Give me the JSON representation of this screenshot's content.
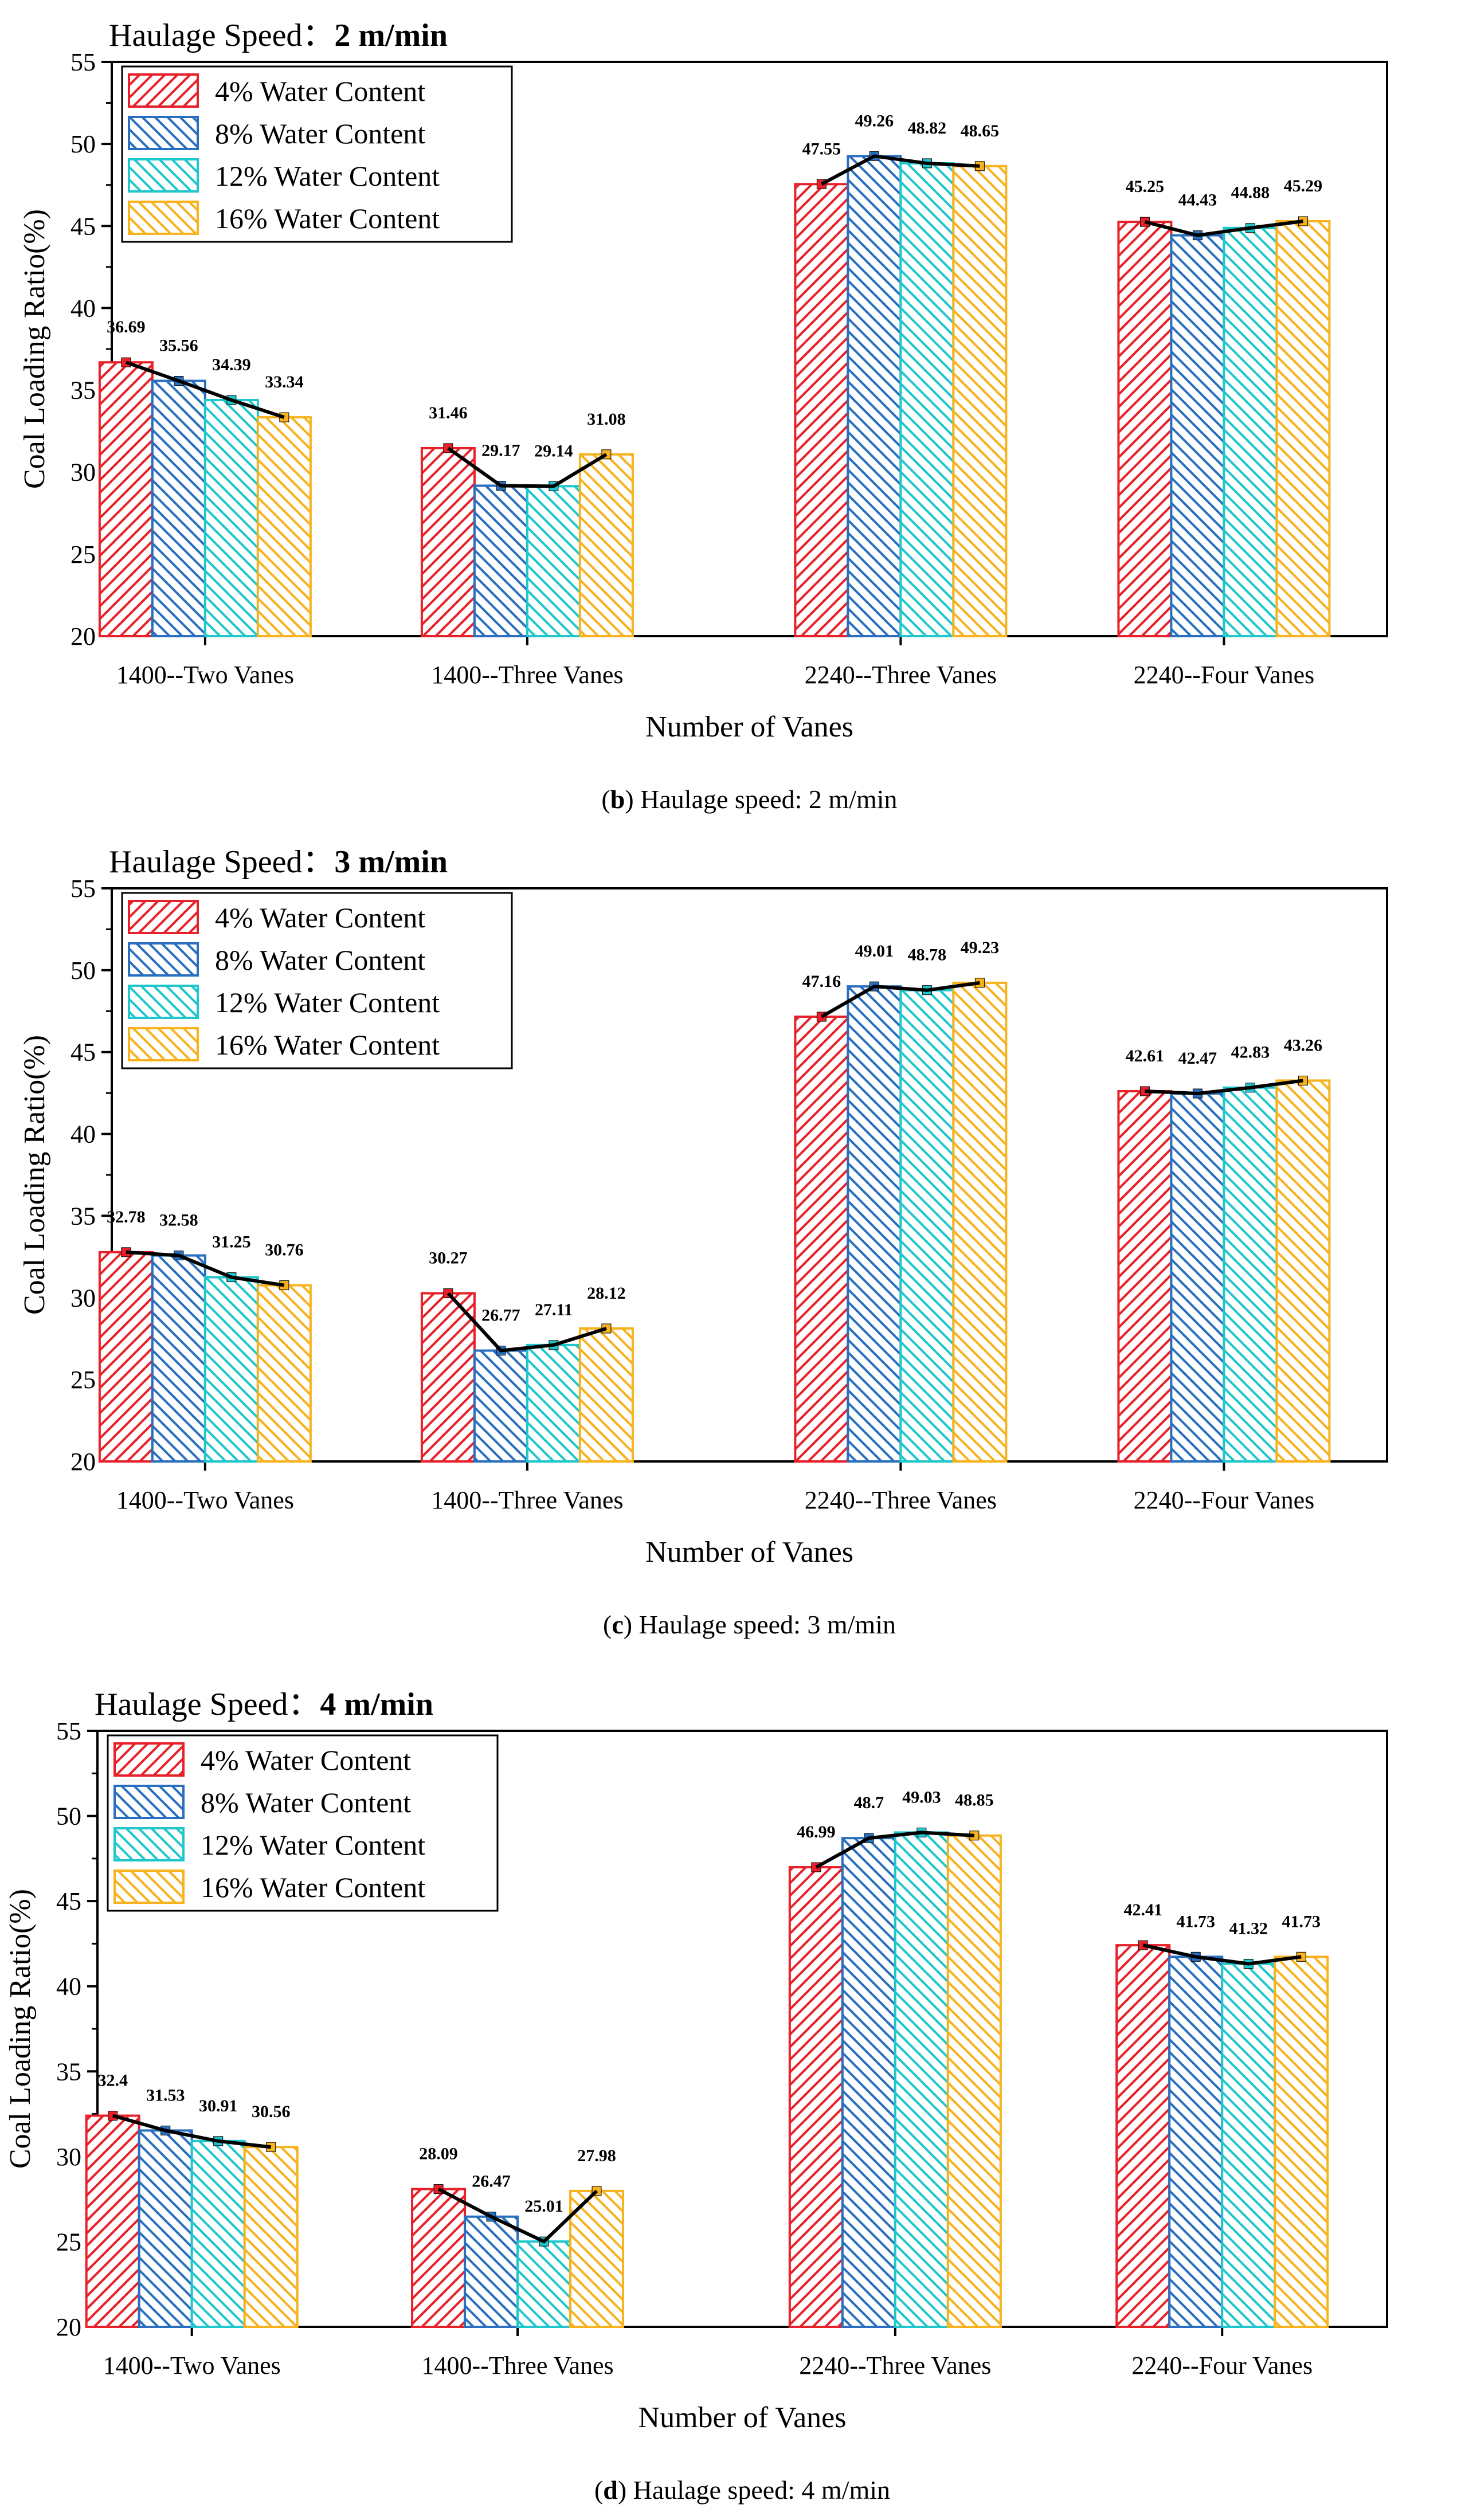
{
  "colors": {
    "series": [
      "#e8202a",
      "#2a6fbf",
      "#1fc7cc",
      "#f7b21e"
    ],
    "line": "#000000",
    "axis": "#000000"
  },
  "chart_data": [
    {
      "type": "bar",
      "panel": "b",
      "heading_prefix": "Haulage Speed：",
      "heading_value": "2 m/min",
      "caption_letter": "b",
      "caption_text": ") Haulage speed: 2 m/min",
      "xlabel": "Number of Vanes",
      "ylabel": "Coal Loading Ratio(%)",
      "ylim": [
        20,
        55
      ],
      "yticks": [
        20,
        25,
        30,
        35,
        40,
        45,
        50,
        55
      ],
      "categories": [
        "1400--Two Vanes",
        "1400--Three Vanes",
        "2240--Three Vanes",
        "2240--Four Vanes"
      ],
      "series": [
        {
          "name": "4% Water Content",
          "values": [
            36.69,
            31.46,
            47.55,
            45.25
          ],
          "labels": [
            "36.69",
            "31.46",
            "47.55",
            "45.25"
          ]
        },
        {
          "name": "8% Water Content",
          "values": [
            35.56,
            29.17,
            49.26,
            44.43
          ],
          "labels": [
            "35.56",
            "29.17",
            "49.26",
            "44.43"
          ]
        },
        {
          "name": "12% Water Content",
          "values": [
            34.39,
            29.14,
            48.82,
            44.88
          ],
          "labels": [
            "34.39",
            "29.14",
            "48.82",
            "44.88"
          ]
        },
        {
          "name": "16% Water Content",
          "values": [
            33.34,
            31.08,
            48.65,
            45.29
          ],
          "labels": [
            "33.34",
            "31.08",
            "48.65",
            "45.29"
          ]
        }
      ]
    },
    {
      "type": "bar",
      "panel": "c",
      "heading_prefix": "Haulage Speed：",
      "heading_value": "3 m/min",
      "caption_letter": "c",
      "caption_text": ") Haulage speed: 3 m/min",
      "xlabel": "Number of Vanes",
      "ylabel": "Coal Loading Ratio(%)",
      "ylim": [
        20,
        55
      ],
      "yticks": [
        20,
        25,
        30,
        35,
        40,
        45,
        50,
        55
      ],
      "categories": [
        "1400--Two Vanes",
        "1400--Three Vanes",
        "2240--Three Vanes",
        "2240--Four Vanes"
      ],
      "series": [
        {
          "name": "4% Water Content",
          "values": [
            32.78,
            30.27,
            47.16,
            42.61
          ],
          "labels": [
            "32.78",
            "30.27",
            "47.16",
            "42.61"
          ]
        },
        {
          "name": "8% Water Content",
          "values": [
            32.58,
            26.77,
            49.01,
            42.47
          ],
          "labels": [
            "32.58",
            "26.77",
            "49.01",
            "42.47"
          ]
        },
        {
          "name": "12% Water Content",
          "values": [
            31.25,
            27.11,
            48.78,
            42.83
          ],
          "labels": [
            "31.25",
            "27.11",
            "48.78",
            "42.83"
          ]
        },
        {
          "name": "16% Water Content",
          "values": [
            30.76,
            28.12,
            49.23,
            43.26
          ],
          "labels": [
            "30.76",
            "28.12",
            "49.23",
            "43.26"
          ]
        }
      ]
    },
    {
      "type": "bar",
      "panel": "d",
      "heading_prefix": "Haulage Speed：",
      "heading_value": "4 m/min",
      "caption_letter": "d",
      "caption_text": ") Haulage speed: 4 m/min",
      "xlabel": "Number of Vanes",
      "ylabel": "Coal Loading Ratio(%)",
      "ylim": [
        20,
        55
      ],
      "yticks": [
        20,
        25,
        30,
        35,
        40,
        45,
        50,
        55
      ],
      "categories": [
        "1400--Two Vanes",
        "1400--Three Vanes",
        "2240--Three Vanes",
        "2240--Four Vanes"
      ],
      "series": [
        {
          "name": "4% Water Content",
          "values": [
            32.4,
            28.09,
            46.99,
            42.41
          ],
          "labels": [
            "32.4",
            "28.09",
            "46.99",
            "42.41"
          ]
        },
        {
          "name": "8% Water Content",
          "values": [
            31.53,
            26.47,
            48.7,
            41.73
          ],
          "labels": [
            "31.53",
            "26.47",
            "48.7",
            "41.73"
          ]
        },
        {
          "name": "12% Water Content",
          "values": [
            30.91,
            25.01,
            49.03,
            41.32
          ],
          "labels": [
            "30.91",
            "25.01",
            "49.03",
            "41.32"
          ]
        },
        {
          "name": "16% Water Content",
          "values": [
            30.56,
            27.98,
            48.85,
            41.73
          ],
          "labels": [
            "30.56",
            "27.98",
            "48.85",
            "41.73"
          ]
        }
      ]
    }
  ]
}
